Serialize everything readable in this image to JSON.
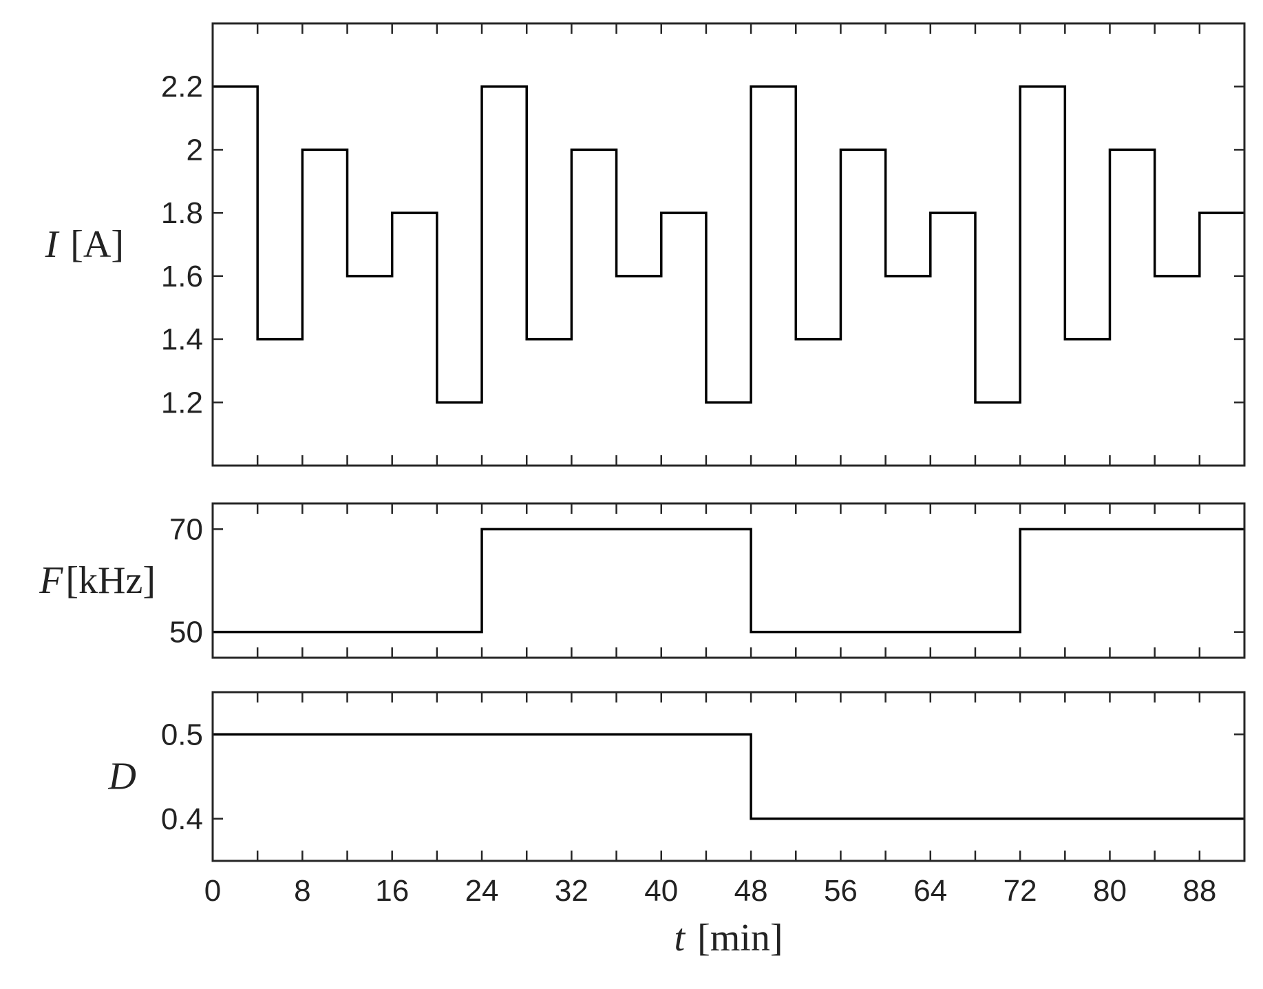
{
  "colors": {
    "line": "#000000",
    "axis": "#262626",
    "text": "#222222",
    "background": "#ffffff"
  },
  "chart_data": [
    {
      "type": "line",
      "step": "post",
      "ylabel": {
        "var": "I",
        "unit": "[A]"
      },
      "ylim": [
        1.0,
        2.4
      ],
      "yticks": [
        1.2,
        1.4,
        1.6,
        1.8,
        2.0,
        2.2
      ],
      "ytick_labels": [
        "1.2",
        "1.4",
        "1.6",
        "1.8",
        "2",
        "2.2"
      ],
      "xlim": [
        0,
        92
      ],
      "x": [
        0,
        4,
        8,
        12,
        16,
        20,
        24,
        28,
        32,
        36,
        40,
        44,
        48,
        52,
        56,
        60,
        64,
        68,
        72,
        76,
        80,
        84,
        88,
        92
      ],
      "y": [
        2.2,
        1.4,
        2.0,
        1.6,
        1.8,
        1.2,
        2.2,
        1.4,
        2.0,
        1.6,
        1.8,
        1.2,
        2.2,
        1.4,
        2.0,
        1.6,
        1.8,
        1.2,
        2.2,
        1.4,
        2.0,
        1.6,
        1.8,
        1.8
      ]
    },
    {
      "type": "line",
      "step": "post",
      "ylabel": {
        "var": "F",
        "unit": "[kHz]"
      },
      "ylim": [
        45,
        75
      ],
      "yticks": [
        50,
        70
      ],
      "ytick_labels": [
        "50",
        "70"
      ],
      "xlim": [
        0,
        92
      ],
      "x": [
        0,
        24,
        48,
        72,
        92
      ],
      "y": [
        50,
        70,
        50,
        70,
        70
      ]
    },
    {
      "type": "line",
      "step": "post",
      "ylabel": {
        "var": "D",
        "unit": ""
      },
      "ylim": [
        0.35,
        0.55
      ],
      "yticks": [
        0.4,
        0.5
      ],
      "ytick_labels": [
        "0.4",
        "0.5"
      ],
      "xlim": [
        0,
        92
      ],
      "x": [
        0,
        48,
        92
      ],
      "y": [
        0.5,
        0.4,
        0.4
      ],
      "xticks": [
        0,
        8,
        16,
        24,
        32,
        40,
        48,
        56,
        64,
        72,
        80,
        88
      ],
      "xtick_labels": [
        "0",
        "8",
        "16",
        "24",
        "32",
        "40",
        "48",
        "56",
        "64",
        "72",
        "80",
        "88"
      ],
      "xlabel": {
        "var": "t",
        "unit": "[min]"
      }
    }
  ],
  "shared_x": {
    "minor_tick_step": 4
  }
}
